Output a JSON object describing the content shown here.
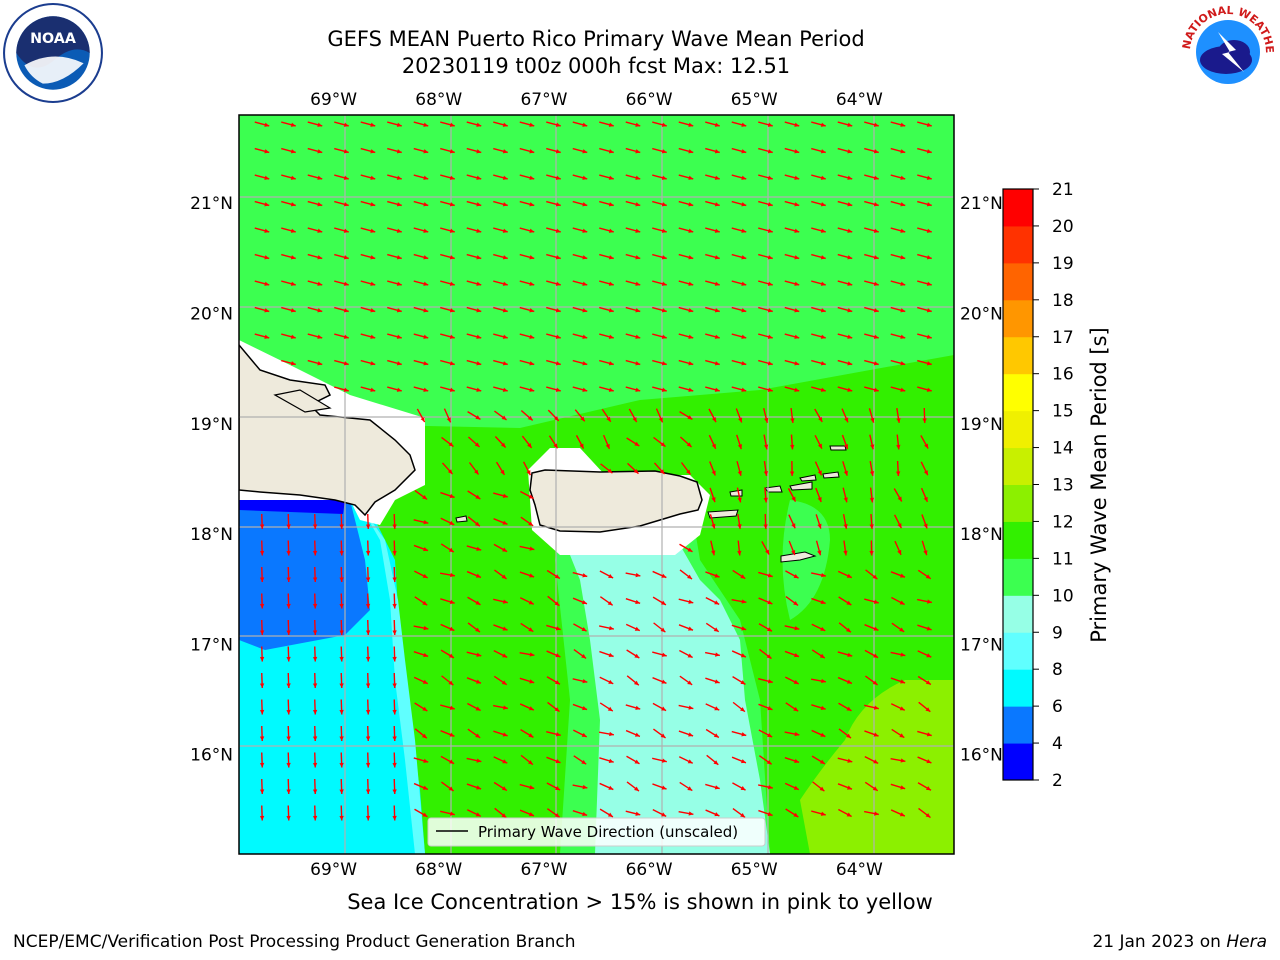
{
  "header": {
    "title_line1": "GEFS MEAN Puerto Rico Primary Wave Mean Period",
    "title_line2": "20230119 t00z 000h fcst   Max: 12.51"
  },
  "logos": {
    "left": {
      "icon": "noaa-logo",
      "text": "NOAA"
    },
    "right": {
      "icon": "nws-logo",
      "text": "NATIONAL WEATHER SERVICE"
    }
  },
  "chart_data": {
    "type": "heatmap",
    "title": "GEFS MEAN Puerto Rico Primary Wave Mean Period",
    "subtitle": "20230119 t00z 000h fcst   Max: 12.51",
    "x_ticks": [
      "69°W",
      "68°W",
      "67°W",
      "66°W",
      "65°W",
      "64°W"
    ],
    "x_tick_values": [
      -69,
      -68,
      -67,
      -66,
      -65,
      -64
    ],
    "y_ticks": [
      "21°N",
      "20°N",
      "19°N",
      "18°N",
      "17°N",
      "16°N"
    ],
    "y_tick_values": [
      21,
      20,
      19,
      18,
      17,
      16
    ],
    "xlim": [
      -69.9,
      -63.1
    ],
    "ylim": [
      15.1,
      21.8
    ],
    "grid": true,
    "colorbar": {
      "label": "Primary Wave Mean Period [s]",
      "ticks": [
        "2",
        "4",
        "6",
        "8",
        "9",
        "10",
        "11",
        "12",
        "13",
        "14",
        "15",
        "16",
        "17",
        "18",
        "19",
        "20",
        "21"
      ],
      "bins": [
        {
          "from": 2,
          "to": 4,
          "color": "#0000ff"
        },
        {
          "from": 4,
          "to": 6,
          "color": "#0a78ff"
        },
        {
          "from": 6,
          "to": 8,
          "color": "#00faff"
        },
        {
          "from": 8,
          "to": 9,
          "color": "#60ffff"
        },
        {
          "from": 9,
          "to": 10,
          "color": "#96ffe6"
        },
        {
          "from": 10,
          "to": 11,
          "color": "#3cff50"
        },
        {
          "from": 11,
          "to": 12,
          "color": "#32f000"
        },
        {
          "from": 12,
          "to": 13,
          "color": "#8cf000"
        },
        {
          "from": 13,
          "to": 14,
          "color": "#c8f000"
        },
        {
          "from": 14,
          "to": 15,
          "color": "#f0f000"
        },
        {
          "from": 15,
          "to": 16,
          "color": "#ffff00"
        },
        {
          "from": 16,
          "to": 17,
          "color": "#ffc800"
        },
        {
          "from": 17,
          "to": 18,
          "color": "#ff9600"
        },
        {
          "from": 18,
          "to": 19,
          "color": "#ff6400"
        },
        {
          "from": 19,
          "to": 20,
          "color": "#ff3200"
        },
        {
          "from": 20,
          "to": 21,
          "color": "#ff0000"
        }
      ]
    },
    "max_value": 12.51,
    "legend": {
      "label": "Primary Wave Direction (unscaled)",
      "placement": "bottom-center"
    },
    "vector_color": "#ff0000",
    "land_color": "#eeeadc"
  },
  "caption": "Sea Ice Concentration > 15% is shown in pink to yellow",
  "footer": {
    "left": "NCEP/EMC/Verification Post Processing Product Generation Branch",
    "right_prefix": "21 Jan 2023 on ",
    "right_host": "Hera"
  }
}
